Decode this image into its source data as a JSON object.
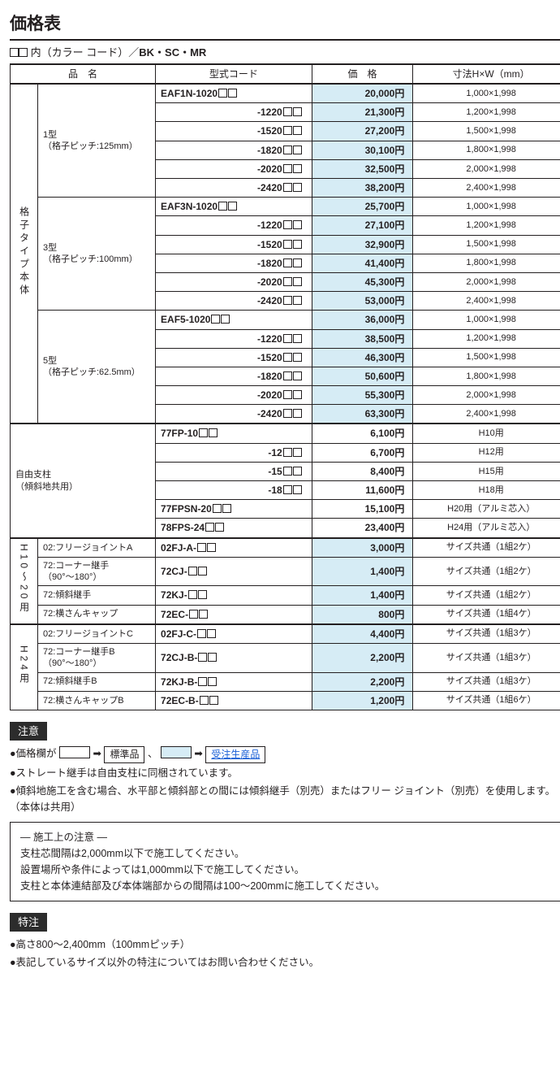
{
  "title": "価格表",
  "subheading_prefix": "内（カラー コード）／",
  "subheading_suffix": "BK・SC・MR",
  "columns": {
    "name": "品　名",
    "code": "型式コード",
    "price": "価　格",
    "dim": "寸法H×W（mm）"
  },
  "groups": [
    {
      "vlabel": "格子タイプ本体",
      "subgroups": [
        {
          "label": "1型\n（格子ピッチ:125mm）",
          "rows": [
            {
              "code": "EAF1N-1020",
              "sq": 2,
              "price": "20,000円",
              "hl": true,
              "dim": "1,000×1,998"
            },
            {
              "code": "-1220",
              "sq": 2,
              "price": "21,300円",
              "hl": true,
              "dim": "1,200×1,998"
            },
            {
              "code": "-1520",
              "sq": 2,
              "price": "27,200円",
              "hl": true,
              "dim": "1,500×1,998"
            },
            {
              "code": "-1820",
              "sq": 2,
              "price": "30,100円",
              "hl": true,
              "dim": "1,800×1,998"
            },
            {
              "code": "-2020",
              "sq": 2,
              "price": "32,500円",
              "hl": true,
              "dim": "2,000×1,998"
            },
            {
              "code": "-2420",
              "sq": 2,
              "price": "38,200円",
              "hl": true,
              "dim": "2,400×1,998"
            }
          ]
        },
        {
          "label": "3型\n（格子ピッチ:100mm）",
          "rows": [
            {
              "code": "EAF3N-1020",
              "sq": 2,
              "price": "25,700円",
              "hl": true,
              "dim": "1,000×1,998"
            },
            {
              "code": "-1220",
              "sq": 2,
              "price": "27,100円",
              "hl": true,
              "dim": "1,200×1,998"
            },
            {
              "code": "-1520",
              "sq": 2,
              "price": "32,900円",
              "hl": true,
              "dim": "1,500×1,998"
            },
            {
              "code": "-1820",
              "sq": 2,
              "price": "41,400円",
              "hl": true,
              "dim": "1,800×1,998"
            },
            {
              "code": "-2020",
              "sq": 2,
              "price": "45,300円",
              "hl": true,
              "dim": "2,000×1,998"
            },
            {
              "code": "-2420",
              "sq": 2,
              "price": "53,000円",
              "hl": true,
              "dim": "2,400×1,998"
            }
          ]
        },
        {
          "label": "5型\n（格子ピッチ:62.5mm）",
          "rows": [
            {
              "code": "EAF5-1020",
              "sq": 2,
              "price": "36,000円",
              "hl": true,
              "dim": "1,000×1,998"
            },
            {
              "code": "-1220",
              "sq": 2,
              "price": "38,500円",
              "hl": true,
              "dim": "1,200×1,998"
            },
            {
              "code": "-1520",
              "sq": 2,
              "price": "46,300円",
              "hl": true,
              "dim": "1,500×1,998"
            },
            {
              "code": "-1820",
              "sq": 2,
              "price": "50,600円",
              "hl": true,
              "dim": "1,800×1,998"
            },
            {
              "code": "-2020",
              "sq": 2,
              "price": "55,300円",
              "hl": true,
              "dim": "2,000×1,998"
            },
            {
              "code": "-2420",
              "sq": 2,
              "price": "63,300円",
              "hl": true,
              "dim": "2,400×1,998"
            }
          ]
        }
      ]
    },
    {
      "vlabel": "",
      "full_label": "自由支柱\n（傾斜地共用）",
      "rows": [
        {
          "code": "77FP-10",
          "sq": 2,
          "price": "6,100円",
          "hl": false,
          "dim": "H10用"
        },
        {
          "code": "-12",
          "sq": 2,
          "price": "6,700円",
          "hl": false,
          "dim": "H12用"
        },
        {
          "code": "-15",
          "sq": 2,
          "price": "8,400円",
          "hl": false,
          "dim": "H15用"
        },
        {
          "code": "-18",
          "sq": 2,
          "price": "11,600円",
          "hl": false,
          "dim": "H18用"
        },
        {
          "code": "77FPSN-20",
          "sq": 2,
          "price": "15,100円",
          "hl": false,
          "dim": "H20用（アルミ芯入）"
        },
        {
          "code": "78FPS-24",
          "sq": 2,
          "price": "23,400円",
          "hl": false,
          "dim": "H24用（アルミ芯入）"
        }
      ]
    },
    {
      "vlabel": "H10〜20用",
      "subgroups": [
        {
          "label": "02:フリージョイントA",
          "rows": [
            {
              "code": "02FJ-A-",
              "sq": 2,
              "price": "3,000円",
              "hl": true,
              "dim": "サイズ共通（1組2ケ）"
            }
          ]
        },
        {
          "label": "72:コーナー継手\n（90°〜180°）",
          "rows": [
            {
              "code": "72CJ-",
              "sq": 2,
              "price": "1,400円",
              "hl": true,
              "dim": "サイズ共通（1組2ケ）"
            }
          ]
        },
        {
          "label": "72:傾斜継手",
          "rows": [
            {
              "code": "72KJ-",
              "sq": 2,
              "price": "1,400円",
              "hl": true,
              "dim": "サイズ共通（1組2ケ）"
            }
          ]
        },
        {
          "label": "72:横さんキャップ",
          "rows": [
            {
              "code": "72EC-",
              "sq": 2,
              "price": "800円",
              "hl": true,
              "dim": "サイズ共通（1組4ケ）"
            }
          ]
        }
      ]
    },
    {
      "vlabel": "H24用",
      "subgroups": [
        {
          "label": "02:フリージョイントC",
          "rows": [
            {
              "code": "02FJ-C-",
              "sq": 2,
              "price": "4,400円",
              "hl": true,
              "dim": "サイズ共通（1組3ケ）"
            }
          ]
        },
        {
          "label": "72:コーナー継手B\n（90°〜180°）",
          "rows": [
            {
              "code": "72CJ-B-",
              "sq": 2,
              "price": "2,200円",
              "hl": true,
              "dim": "サイズ共通（1組3ケ）"
            }
          ]
        },
        {
          "label": "72:傾斜継手B",
          "rows": [
            {
              "code": "72KJ-B-",
              "sq": 2,
              "price": "2,200円",
              "hl": true,
              "dim": "サイズ共通（1組3ケ）"
            }
          ]
        },
        {
          "label": "72:横さんキャップB",
          "rows": [
            {
              "code": "72EC-B-",
              "sq": 2,
              "price": "1,200円",
              "hl": true,
              "dim": "サイズ共通（1組6ケ）"
            }
          ]
        }
      ]
    }
  ],
  "notice": {
    "tag": "注意",
    "legend_price_label": "●価格欄が",
    "legend_std": "標準品",
    "legend_order": "受注生産品",
    "lines": [
      "●ストレート継手は自由支柱に同梱されています。",
      "●傾斜地施工を含む場合、水平部と傾斜部との間には傾斜継手（別売）またはフリー ジョイント（別売）を使用します。（本体は共用）"
    ],
    "construction_title": "― 施工上の注意 ―",
    "construction_lines": [
      "支柱芯間隔は2,000mm以下で施工してください。",
      "設置場所や条件によっては1,000mm以下で施工してください。",
      "支柱と本体連結部及び本体端部からの間隔は100〜200mmに施工してください。"
    ]
  },
  "special": {
    "tag": "特注",
    "lines": [
      "●高さ800〜2,400mm（100mmピッチ）",
      "●表記しているサイズ以外の特注についてはお問い合わせください。"
    ]
  }
}
